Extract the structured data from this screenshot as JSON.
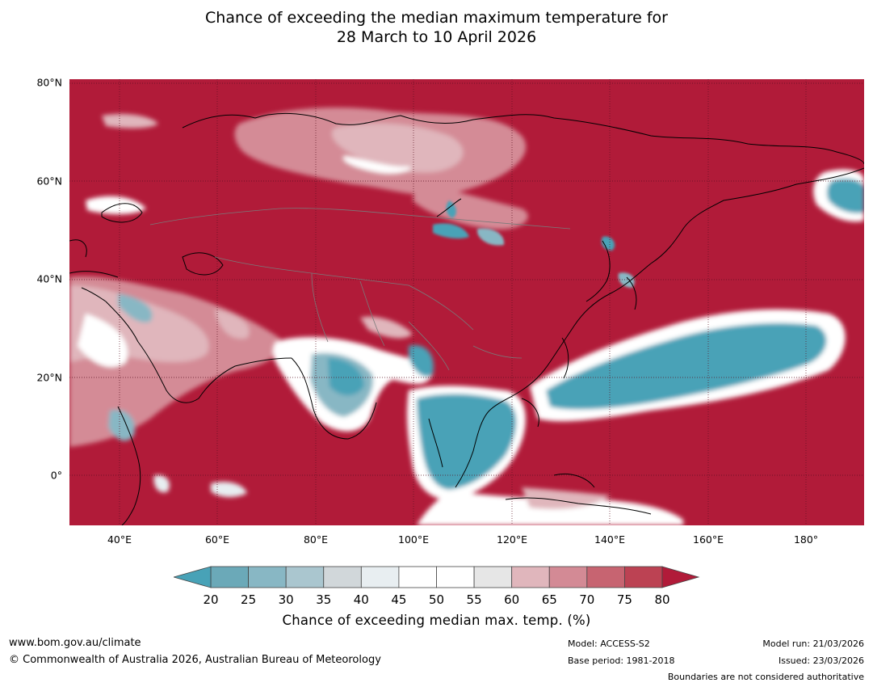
{
  "title": {
    "line1": "Chance of exceeding the median maximum temperature for",
    "line2": "28 March to 10 April 2026"
  },
  "map": {
    "latitude_labels": [
      "80°N",
      "60°N",
      "40°N",
      "20°N",
      "0°"
    ],
    "longitude_labels": [
      "40°E",
      "60°E",
      "80°E",
      "100°E",
      "120°E",
      "140°E",
      "160°E",
      "180°"
    ],
    "colors": {
      "high": "#b11b39",
      "mid_high": "#d48b96",
      "neutral": "#ffffff",
      "low": "#48a2b7"
    }
  },
  "colorbar": {
    "ticks": [
      "20",
      "25",
      "30",
      "35",
      "40",
      "45",
      "50",
      "55",
      "60",
      "65",
      "70",
      "75",
      "80"
    ],
    "segment_colors": [
      "#6ba9b8",
      "#88b7c4",
      "#aac6cf",
      "#d1d7da",
      "#e8eef1",
      "#ffffff",
      "#ffffff",
      "#e6e6e6",
      "#e0b6bc",
      "#d38a95",
      "#c76471",
      "#bc4253"
    ],
    "low_extend_color": "#48a2b7",
    "high_extend_color": "#b11b39",
    "label": "Chance of exceeding median max. temp. (%)"
  },
  "footer": {
    "url": "www.bom.gov.au/climate",
    "copyright": "© Commonwealth of Australia 2026, Australian Bureau of Meteorology",
    "model": "Model: ACCESS-S2",
    "base_period": "Base period: 1981-2018",
    "model_run": "Model run: 21/03/2026",
    "issued": "Issued: 23/03/2026",
    "disclaimer": "Boundaries are not considered authoritative"
  }
}
